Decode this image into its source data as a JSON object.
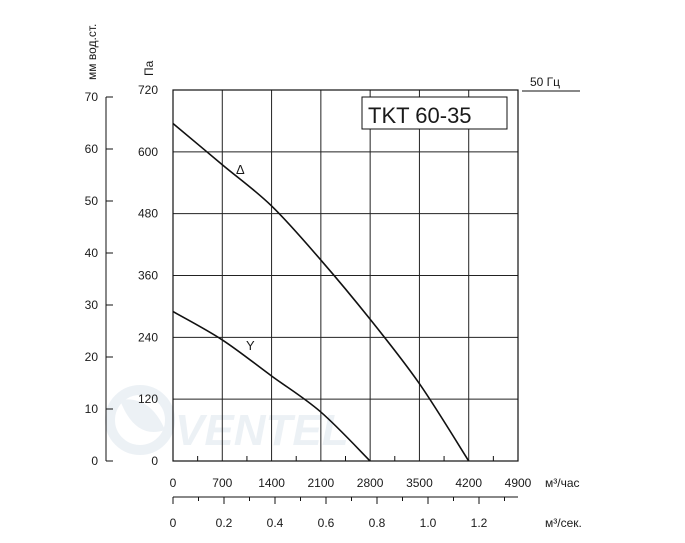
{
  "chart_data": {
    "type": "line",
    "title": "TKT 60-35",
    "frequency_label": "50 Гц",
    "x_axis": {
      "label": "м³/час",
      "ticks": [
        0,
        700,
        1400,
        2100,
        2800,
        3500,
        4200,
        4900
      ],
      "xlim": [
        0,
        4900
      ]
    },
    "x2_axis": {
      "label": "м³/сек.",
      "ticks": [
        "0",
        "0.2",
        "0.4",
        "0.6",
        "0.8",
        "1.0",
        "1.2"
      ]
    },
    "y_axis": {
      "label": "Па",
      "ticks": [
        0,
        120,
        240,
        360,
        480,
        600,
        720
      ],
      "ylim": [
        0,
        720
      ]
    },
    "y2_axis": {
      "label": "мм вод.ст.",
      "ticks": [
        0,
        10,
        20,
        30,
        40,
        50,
        60,
        70
      ]
    },
    "grid": true,
    "series": [
      {
        "name": "Δ",
        "x": [
          0,
          700,
          1400,
          2100,
          2800,
          3500,
          4200
        ],
        "y": [
          655,
          575,
          495,
          390,
          275,
          150,
          0
        ]
      },
      {
        "name": "Y",
        "x": [
          0,
          700,
          1400,
          2100,
          2800
        ],
        "y": [
          290,
          235,
          165,
          95,
          0
        ]
      }
    ]
  }
}
